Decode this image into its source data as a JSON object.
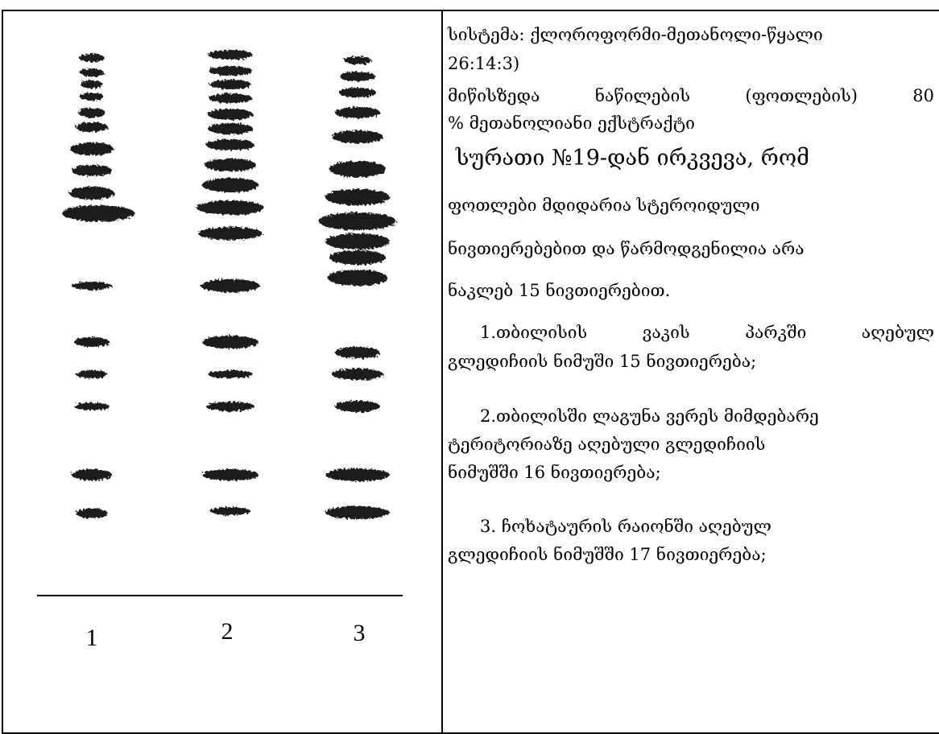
{
  "figure": {
    "lane_labels": [
      "1",
      "2",
      "3"
    ]
  },
  "text": {
    "lines": [
      "სისტემა:  ქლოროფორმი-მეთანოლი-წყალი",
      "26:14:3)",
      "მიწისზედა   ნაწილების (ფოთლების)   80",
      "%  მეთანოლიანი ექსტრაქტი",
      "სურათი  №19-დან ირკვევა, რომ",
      "ფოთლები მდიდარია სტეროიდული",
      "ნივთიერებებით და წარმოდგენილია არა",
      "ნაკლებ 15 ნივთიერებით.",
      "1.თბილისის ვაკის პარკში აღებულ",
      "გლედიჩიის ნიმუში 15 ნივთიერება;",
      "2.თბილისში ლაგუნა ვერეს მიმდებარე",
      "ტერიტორიაზე  აღებული გლედიჩიის",
      "ნიმუშში 16 ნივთიერება;",
      "3. ჩოხატაურის რაიონში აღებულ",
      "გლედიჩიის ნიმუშში 17 ნივთიერება;"
    ]
  }
}
